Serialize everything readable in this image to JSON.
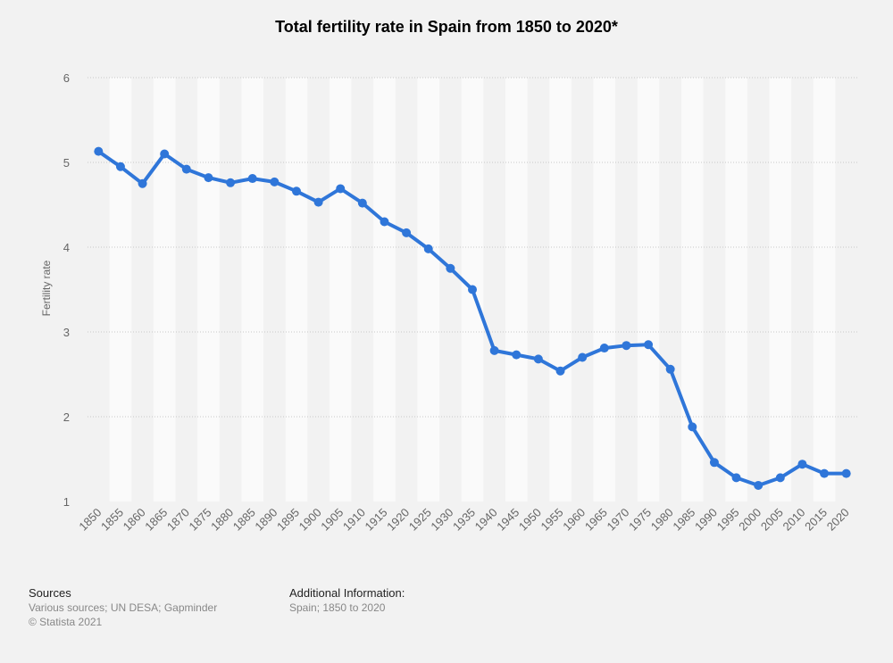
{
  "chart_data": {
    "type": "line",
    "title": "Total fertility rate in Spain from 1850 to 2020*",
    "xlabel": "",
    "ylabel": "Fertility rate",
    "ylim": [
      1,
      6
    ],
    "yticks": [
      1,
      2,
      3,
      4,
      5,
      6
    ],
    "categories": [
      "1850",
      "1855",
      "1860",
      "1865",
      "1870",
      "1875",
      "1880",
      "1885",
      "1890",
      "1895",
      "1900",
      "1905",
      "1910",
      "1915",
      "1920",
      "1925",
      "1930",
      "1935",
      "1940",
      "1945",
      "1950",
      "1955",
      "1960",
      "1965",
      "1970",
      "1975",
      "1980",
      "1985",
      "1990",
      "1995",
      "2000",
      "2005",
      "2010",
      "2015",
      "2020"
    ],
    "series": [
      {
        "name": "Fertility rate",
        "color": "#2f76d9",
        "values": [
          5.13,
          4.95,
          4.75,
          5.1,
          4.92,
          4.82,
          4.76,
          4.81,
          4.77,
          4.66,
          4.53,
          4.69,
          4.52,
          4.3,
          4.17,
          3.98,
          3.75,
          3.5,
          2.78,
          2.73,
          2.68,
          2.54,
          2.7,
          2.81,
          2.84,
          2.85,
          2.56,
          1.88,
          1.46,
          1.28,
          1.19,
          1.28,
          1.44,
          1.33,
          1.33
        ]
      }
    ],
    "grid": true
  },
  "footer": {
    "sources_title": "Sources",
    "sources_line1": "Various sources; UN DESA; Gapminder",
    "sources_line2": "© Statista 2021",
    "addinfo_title": "Additional Information:",
    "addinfo_line1": "Spain; 1850 to 2020"
  }
}
